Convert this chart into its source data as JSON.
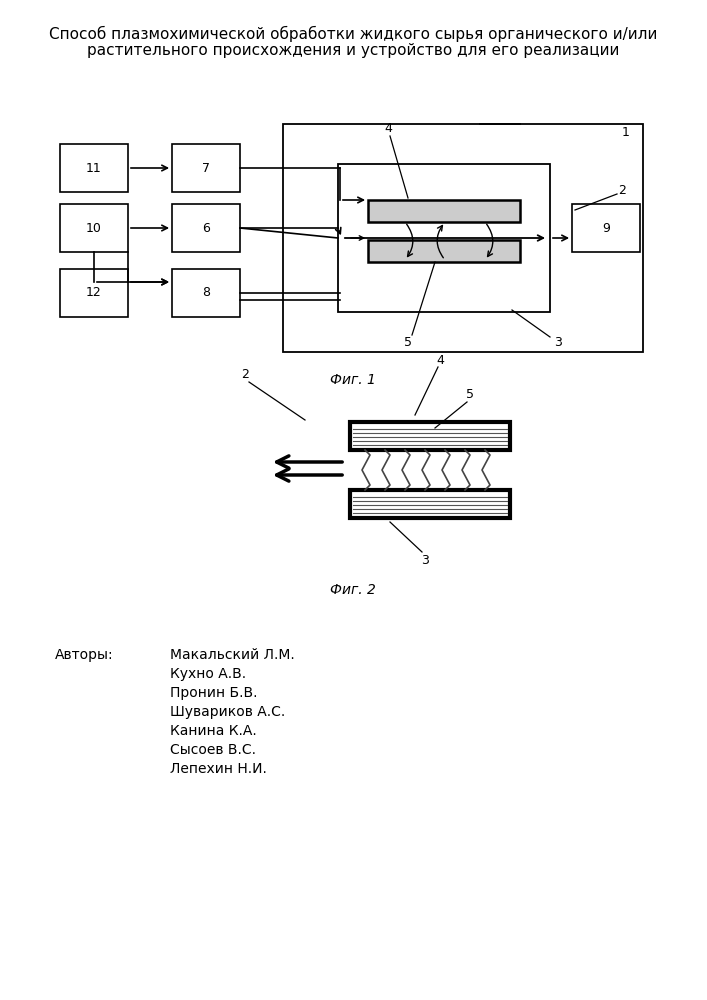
{
  "title_line1": "Способ плазмохимической обработки жидкого сырья органического и/или",
  "title_line2": "растительного происхождения и устройство для его реализации",
  "fig1_label": "Фиг. 1",
  "fig2_label": "Фиг. 2",
  "authors_label": "Авторы:",
  "authors": [
    "Макальский Л.М.",
    "Кухно А.В.",
    "Пронин Б.В.",
    "Шувариков А.С.",
    "Канина К.А.",
    "Сысоев В.С.",
    "Лепехин Н.И."
  ],
  "bg_color": "#ffffff",
  "line_color": "#000000",
  "font_size_title": 11,
  "font_size_authors": 10
}
